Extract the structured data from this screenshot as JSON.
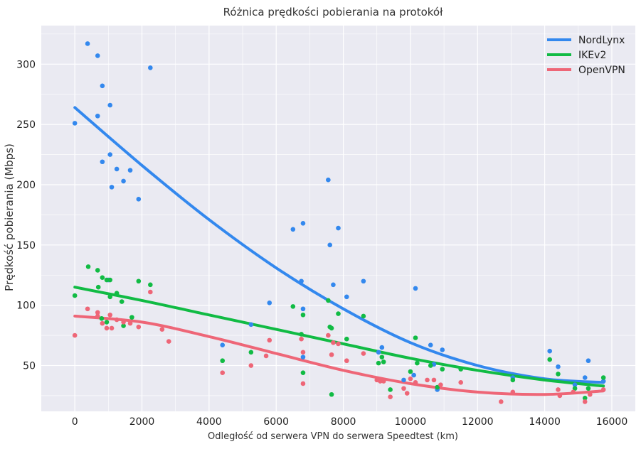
{
  "chart_data": {
    "type": "scatter",
    "title": "Różnica prędkości pobierania na protokół",
    "xlabel": "Odległość od serwera VPN do serwera Speedtest (km)",
    "ylabel": "Prędkość pobierania (Mbps)",
    "xlim": [
      -1000,
      16700
    ],
    "ylim": [
      12,
      332
    ],
    "xticks": [
      0,
      2000,
      4000,
      6000,
      8000,
      10000,
      12000,
      14000,
      16000
    ],
    "yticks": [
      50,
      100,
      150,
      200,
      250,
      300
    ],
    "grid": true,
    "legend_position": "top-right",
    "series": [
      {
        "name": "NordLynx",
        "color": "#3388ee",
        "points": [
          [
            0,
            251
          ],
          [
            380,
            317
          ],
          [
            680,
            307
          ],
          [
            820,
            282
          ],
          [
            1050,
            266
          ],
          [
            680,
            257
          ],
          [
            820,
            219
          ],
          [
            1050,
            225
          ],
          [
            1250,
            213
          ],
          [
            1650,
            212
          ],
          [
            1450,
            203
          ],
          [
            1100,
            198
          ],
          [
            1900,
            188
          ],
          [
            2250,
            297
          ],
          [
            7550,
            204
          ],
          [
            6800,
            168
          ],
          [
            6500,
            163
          ],
          [
            7850,
            164
          ],
          [
            7600,
            150
          ],
          [
            6750,
            120
          ],
          [
            7700,
            117
          ],
          [
            8600,
            120
          ],
          [
            5800,
            102
          ],
          [
            8100,
            107
          ],
          [
            6800,
            97
          ],
          [
            10150,
            114
          ],
          [
            1000,
            121
          ],
          [
            4400,
            67
          ],
          [
            5250,
            84
          ],
          [
            6800,
            57
          ],
          [
            9150,
            65
          ],
          [
            9050,
            61
          ],
          [
            10600,
            67
          ],
          [
            10950,
            63
          ],
          [
            9800,
            38
          ],
          [
            10700,
            51
          ],
          [
            10100,
            42
          ],
          [
            10800,
            30
          ],
          [
            13050,
            40
          ],
          [
            14150,
            62
          ],
          [
            14400,
            49
          ],
          [
            15200,
            40
          ],
          [
            15300,
            54
          ],
          [
            15750,
            37
          ],
          [
            14900,
            34
          ]
        ],
        "curve": [
          [
            0,
            264
          ],
          [
            2000,
            216
          ],
          [
            4000,
            171
          ],
          [
            6000,
            131
          ],
          [
            8000,
            97
          ],
          [
            10000,
            69
          ],
          [
            12000,
            50
          ],
          [
            14000,
            39
          ],
          [
            15750,
            36
          ]
        ]
      },
      {
        "name": "IKEv2",
        "color": "#11bb44",
        "points": [
          [
            0,
            108
          ],
          [
            400,
            132
          ],
          [
            680,
            129
          ],
          [
            820,
            123
          ],
          [
            700,
            115
          ],
          [
            1050,
            121
          ],
          [
            950,
            121
          ],
          [
            1050,
            107
          ],
          [
            1250,
            110
          ],
          [
            1400,
            103
          ],
          [
            1700,
            90
          ],
          [
            1450,
            83
          ],
          [
            1900,
            120
          ],
          [
            2250,
            117
          ],
          [
            800,
            89
          ],
          [
            950,
            86
          ],
          [
            4400,
            54
          ],
          [
            5250,
            61
          ],
          [
            6500,
            99
          ],
          [
            6750,
            76
          ],
          [
            6800,
            92
          ],
          [
            7550,
            104
          ],
          [
            7650,
            81
          ],
          [
            7600,
            82
          ],
          [
            7850,
            93
          ],
          [
            8600,
            91
          ],
          [
            8100,
            72
          ],
          [
            6800,
            44
          ],
          [
            7650,
            26
          ],
          [
            9050,
            52
          ],
          [
            9150,
            57
          ],
          [
            9200,
            53
          ],
          [
            9400,
            30
          ],
          [
            10000,
            45
          ],
          [
            10150,
            73
          ],
          [
            10200,
            52
          ],
          [
            10600,
            50
          ],
          [
            10800,
            32
          ],
          [
            10950,
            47
          ],
          [
            11500,
            47
          ],
          [
            13050,
            38
          ],
          [
            14150,
            55
          ],
          [
            14400,
            43
          ],
          [
            14900,
            31
          ],
          [
            15200,
            23
          ],
          [
            15300,
            31
          ],
          [
            15750,
            40
          ]
        ],
        "curve": [
          [
            0,
            115
          ],
          [
            2000,
            104
          ],
          [
            4000,
            92
          ],
          [
            6000,
            80
          ],
          [
            8000,
            68
          ],
          [
            10000,
            56
          ],
          [
            12000,
            46
          ],
          [
            14000,
            38
          ],
          [
            15750,
            33
          ]
        ]
      },
      {
        "name": "OpenVPN",
        "color": "#ee6677",
        "points": [
          [
            0,
            75
          ],
          [
            380,
            97
          ],
          [
            680,
            94
          ],
          [
            680,
            91
          ],
          [
            820,
            85
          ],
          [
            950,
            81
          ],
          [
            1050,
            92
          ],
          [
            1100,
            81
          ],
          [
            1250,
            88
          ],
          [
            1450,
            86
          ],
          [
            1650,
            85
          ],
          [
            1900,
            82
          ],
          [
            2250,
            111
          ],
          [
            2600,
            80
          ],
          [
            2800,
            70
          ],
          [
            4400,
            44
          ],
          [
            5250,
            50
          ],
          [
            5700,
            58
          ],
          [
            5800,
            71
          ],
          [
            6800,
            61
          ],
          [
            6800,
            35
          ],
          [
            6750,
            72
          ],
          [
            7550,
            75
          ],
          [
            7700,
            69
          ],
          [
            7650,
            59
          ],
          [
            7850,
            68
          ],
          [
            8100,
            54
          ],
          [
            8600,
            60
          ],
          [
            9000,
            38
          ],
          [
            9100,
            37
          ],
          [
            9200,
            37
          ],
          [
            9400,
            24
          ],
          [
            9800,
            31
          ],
          [
            9900,
            27
          ],
          [
            10000,
            39
          ],
          [
            10150,
            36
          ],
          [
            10500,
            38
          ],
          [
            10700,
            38
          ],
          [
            10900,
            34
          ],
          [
            11500,
            36
          ],
          [
            12700,
            20
          ],
          [
            13050,
            28
          ],
          [
            14400,
            30
          ],
          [
            14450,
            25
          ],
          [
            14850,
            28
          ],
          [
            15200,
            20
          ],
          [
            15350,
            26
          ],
          [
            15750,
            30
          ]
        ],
        "curve": [
          [
            0,
            91
          ],
          [
            2000,
            86
          ],
          [
            4000,
            74
          ],
          [
            6000,
            60
          ],
          [
            8000,
            46
          ],
          [
            10000,
            35
          ],
          [
            12000,
            28
          ],
          [
            14000,
            26
          ],
          [
            15750,
            29
          ]
        ]
      }
    ]
  }
}
